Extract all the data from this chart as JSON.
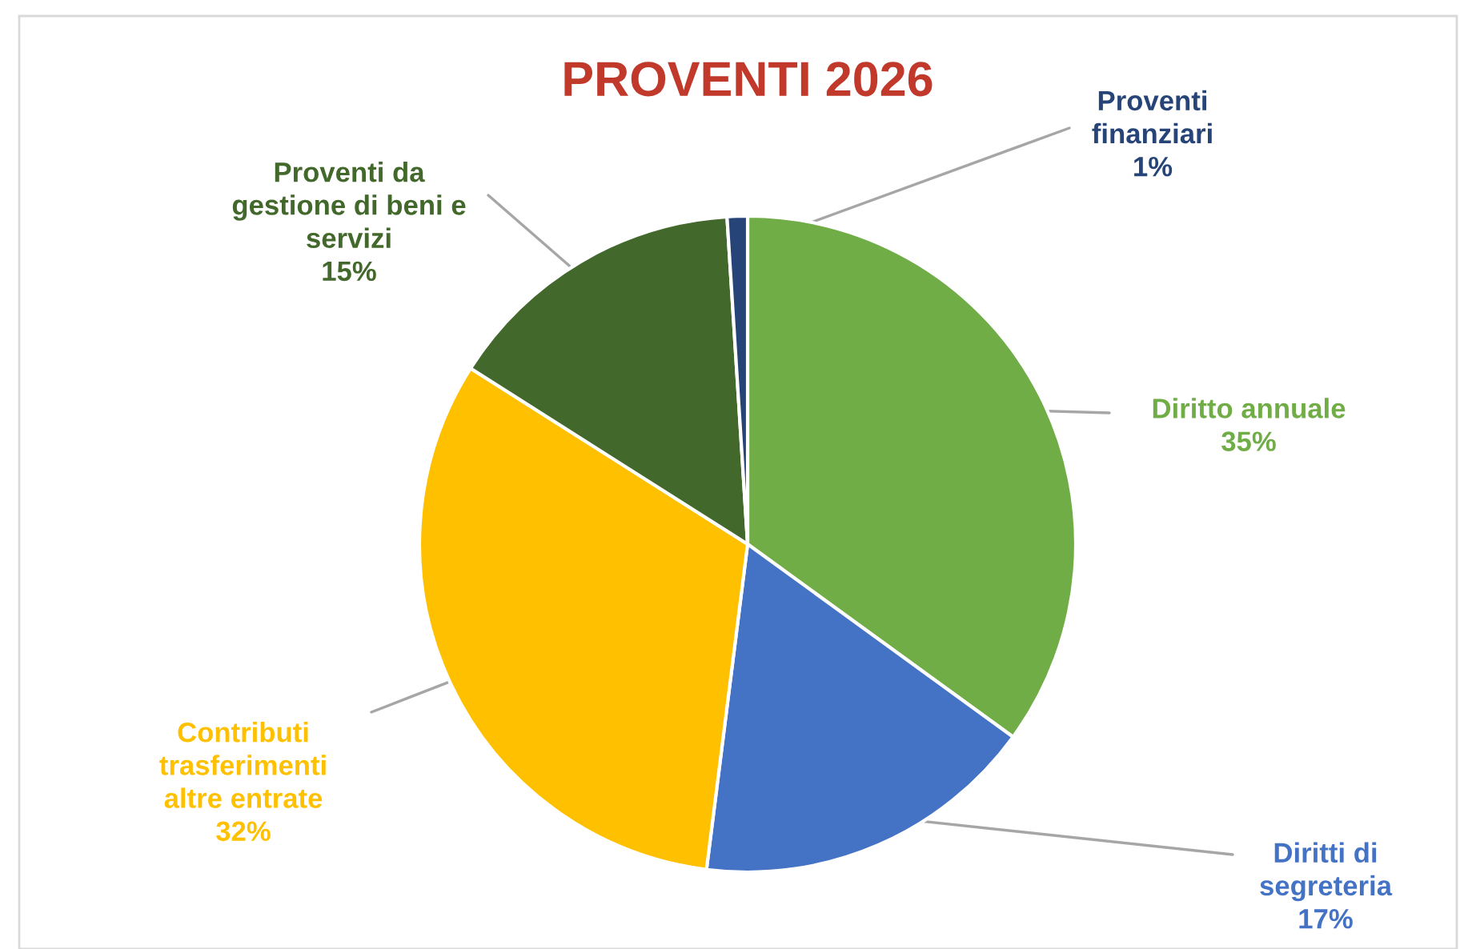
{
  "chart_data": {
    "type": "pie",
    "title": "PROVENTI 2026",
    "categories": [
      "Diritto annuale",
      "Diritti di\nsegreteria",
      "Contributi\ntrasferimenti\naltre entrate",
      "Proventi da\ngestione di beni e\nservizi",
      "Proventi\nfinanziari"
    ],
    "values": [
      35,
      17,
      32,
      15,
      1
    ],
    "colors": [
      "#70ad47",
      "#4472c4",
      "#ffc000",
      "#43682b",
      "#264478"
    ],
    "value_labels": [
      "35%",
      "17%",
      "32%",
      "15%",
      "1%"
    ]
  }
}
